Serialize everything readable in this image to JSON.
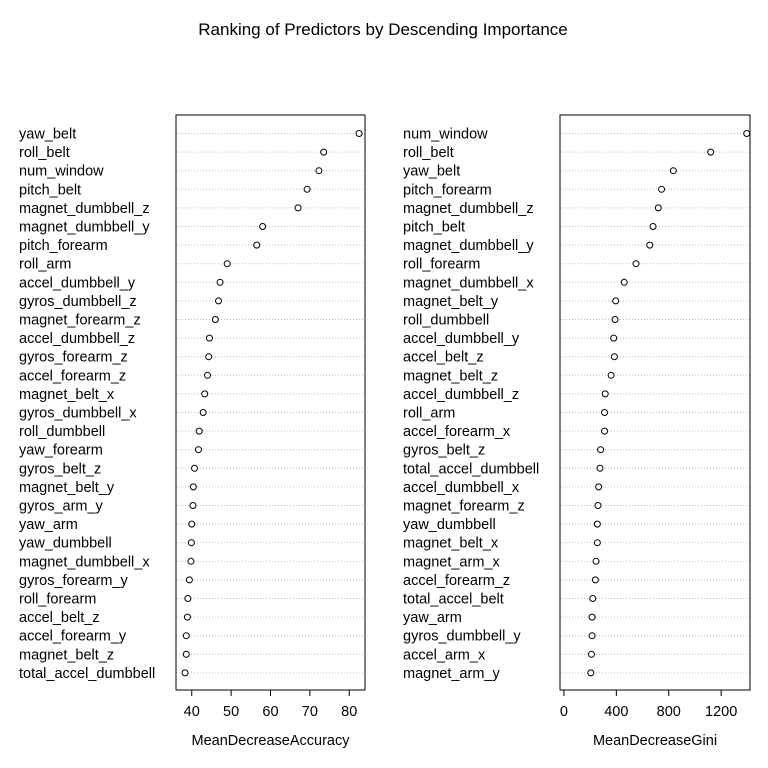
{
  "title": "Ranking of Predictors by Descending Importance",
  "chart_data": [
    {
      "type": "scatter",
      "subtype": "dotchart",
      "xlabel": "MeanDecreaseAccuracy",
      "xlim": [
        36,
        84
      ],
      "xticks": [
        40,
        50,
        60,
        70,
        80
      ],
      "grid": "dotted horizontal",
      "categories": [
        "yaw_belt",
        "roll_belt",
        "num_window",
        "pitch_belt",
        "magnet_dumbbell_z",
        "magnet_dumbbell_y",
        "pitch_forearm",
        "roll_arm",
        "accel_dumbbell_y",
        "gyros_dumbbell_z",
        "magnet_forearm_z",
        "accel_dumbbell_z",
        "gyros_forearm_z",
        "accel_forearm_z",
        "magnet_belt_x",
        "gyros_dumbbell_x",
        "roll_dumbbell",
        "yaw_forearm",
        "gyros_belt_z",
        "magnet_belt_y",
        "gyros_arm_y",
        "yaw_arm",
        "yaw_dumbbell",
        "magnet_dumbbell_x",
        "gyros_forearm_y",
        "roll_forearm",
        "accel_belt_z",
        "accel_forearm_y",
        "magnet_belt_z",
        "total_accel_dumbbell"
      ],
      "values": [
        82.5,
        73.5,
        72.3,
        69.3,
        67.0,
        58.0,
        56.5,
        49.0,
        47.2,
        46.8,
        46.0,
        44.5,
        44.3,
        44.0,
        43.3,
        42.9,
        41.9,
        41.7,
        40.7,
        40.4,
        40.3,
        40.0,
        39.9,
        39.8,
        39.4,
        39.0,
        38.9,
        38.6,
        38.6,
        38.3
      ]
    },
    {
      "type": "scatter",
      "subtype": "dotchart",
      "xlabel": "MeanDecreaseGini",
      "xlim": [
        -30,
        1420
      ],
      "xticks": [
        0,
        400,
        800,
        1200
      ],
      "grid": "dotted horizontal",
      "categories": [
        "num_window",
        "roll_belt",
        "yaw_belt",
        "pitch_forearm",
        "magnet_dumbbell_z",
        "pitch_belt",
        "magnet_dumbbell_y",
        "roll_forearm",
        "magnet_dumbbell_x",
        "magnet_belt_y",
        "roll_dumbbell",
        "accel_dumbbell_y",
        "accel_belt_z",
        "magnet_belt_z",
        "accel_dumbbell_z",
        "roll_arm",
        "accel_forearm_x",
        "gyros_belt_z",
        "total_accel_dumbbell",
        "accel_dumbbell_x",
        "magnet_forearm_z",
        "yaw_dumbbell",
        "magnet_belt_x",
        "magnet_arm_x",
        "accel_forearm_z",
        "total_accel_belt",
        "yaw_arm",
        "gyros_dumbbell_y",
        "accel_arm_x",
        "magnet_arm_y"
      ],
      "values": [
        1395,
        1120,
        835,
        745,
        720,
        680,
        655,
        550,
        460,
        395,
        390,
        380,
        385,
        360,
        315,
        310,
        310,
        280,
        275,
        265,
        260,
        255,
        255,
        245,
        240,
        220,
        215,
        215,
        210,
        205
      ]
    }
  ]
}
